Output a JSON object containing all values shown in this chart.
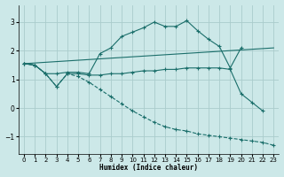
{
  "xlabel": "Humidex (Indice chaleur)",
  "xlim": [
    -0.5,
    23.5
  ],
  "ylim": [
    -1.6,
    3.6
  ],
  "yticks": [
    -1,
    0,
    1,
    2,
    3
  ],
  "xticks": [
    0,
    1,
    2,
    3,
    4,
    5,
    6,
    7,
    8,
    9,
    10,
    11,
    12,
    13,
    14,
    15,
    16,
    17,
    18,
    19,
    20,
    21,
    22,
    23
  ],
  "bg_color": "#cce8e8",
  "grid_color": "#aacccc",
  "line_color": "#1a6e6a",
  "series": [
    {
      "x": [
        0,
        1,
        2,
        3,
        4,
        5,
        6,
        7,
        8,
        9,
        10,
        11,
        12,
        13,
        14,
        15,
        16,
        17,
        18,
        19,
        20
      ],
      "y": [
        1.55,
        1.5,
        1.2,
        1.2,
        1.25,
        1.25,
        1.2,
        1.9,
        2.1,
        2.5,
        2.65,
        2.8,
        3.0,
        2.85,
        2.85,
        3.05,
        2.7,
        2.4,
        2.15,
        1.4,
        2.1
      ],
      "dashed": false,
      "marker": true
    },
    {
      "x": [
        0,
        23
      ],
      "y": [
        1.55,
        2.1
      ],
      "dashed": false,
      "marker": false
    },
    {
      "x": [
        0,
        1,
        2,
        3,
        4,
        5,
        6,
        7,
        8,
        9,
        10,
        11,
        12,
        13,
        14,
        15,
        16,
        17,
        18,
        19,
        20,
        21,
        22
      ],
      "y": [
        1.55,
        1.5,
        1.2,
        0.75,
        1.2,
        1.2,
        1.15,
        1.15,
        1.2,
        1.2,
        1.25,
        1.3,
        1.3,
        1.35,
        1.35,
        1.4,
        1.4,
        1.4,
        1.4,
        1.35,
        0.5,
        0.2,
        -0.1
      ],
      "dashed": false,
      "marker": true
    },
    {
      "x": [
        0,
        1,
        2,
        3,
        4,
        5,
        6,
        7,
        8,
        9,
        10,
        11,
        12,
        13,
        14,
        15,
        16,
        17,
        18,
        19,
        20,
        21,
        22,
        23
      ],
      "y": [
        1.55,
        1.5,
        1.2,
        0.75,
        1.2,
        1.1,
        0.9,
        0.65,
        0.4,
        0.15,
        -0.1,
        -0.3,
        -0.5,
        -0.65,
        -0.75,
        -0.8,
        -0.9,
        -0.95,
        -1.0,
        -1.05,
        -1.1,
        -1.15,
        -1.2,
        -1.3
      ],
      "dashed": true,
      "marker": true
    }
  ]
}
